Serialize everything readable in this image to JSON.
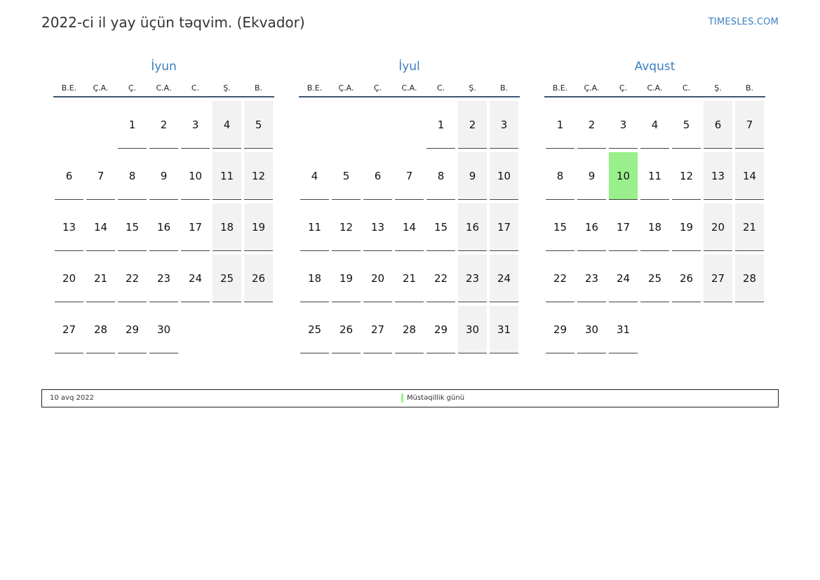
{
  "header": {
    "title": "2022-ci il yay üçün təqvim. (Ekvador)",
    "site": "TIMESLES.COM"
  },
  "weekdays": [
    "B.E.",
    "Ç.A.",
    "Ç.",
    "C.A.",
    "C.",
    "Ş.",
    "B."
  ],
  "colors": {
    "accent": "#3a7fc0",
    "holiday": "#99f08a",
    "weekend": "#f2f2f2"
  },
  "months": [
    {
      "name": "İyun",
      "offset": 2,
      "days": 30,
      "holidays": []
    },
    {
      "name": "İyul",
      "offset": 4,
      "days": 31,
      "holidays": []
    },
    {
      "name": "Avqust",
      "offset": 0,
      "days": 31,
      "holidays": [
        10
      ]
    }
  ],
  "legend": {
    "date": "10 avq 2022",
    "name": "Müstəqillik günü"
  }
}
